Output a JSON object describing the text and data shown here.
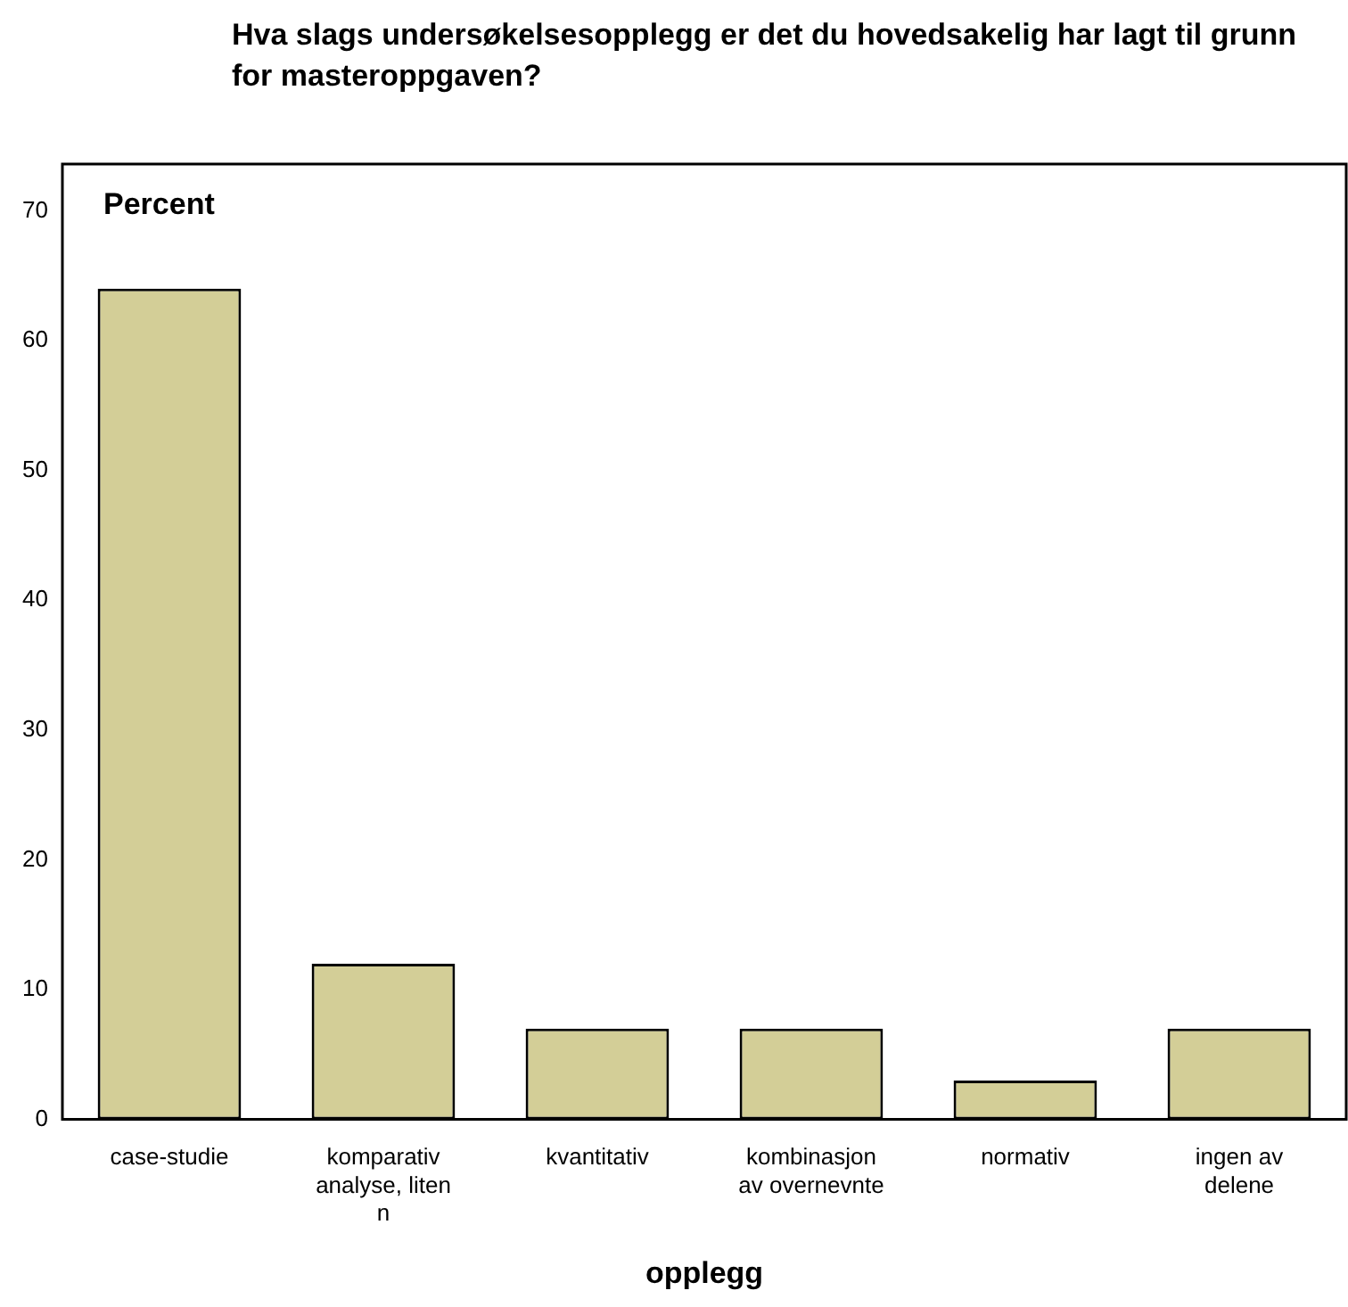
{
  "chart_data": {
    "type": "bar",
    "title": "Hva slags undersøkelsesopplegg er det du hovedsakelig har lagt til grunn for masteroppgaven?",
    "xlabel": "opplegg",
    "ylabel": "Percent",
    "categories": [
      "case-studie",
      "komparativ analyse, liten n",
      "kvantitativ",
      "kombinasjon av overnevnte",
      "normativ",
      "ingen av delene"
    ],
    "values": [
      64,
      12,
      7,
      7,
      3,
      7
    ],
    "color": "#d3ce97",
    "ylim": [
      0,
      73.6
    ],
    "yticks": [
      0,
      10,
      20,
      30,
      40,
      50,
      60,
      70
    ],
    "grid": false,
    "legend": false
  }
}
